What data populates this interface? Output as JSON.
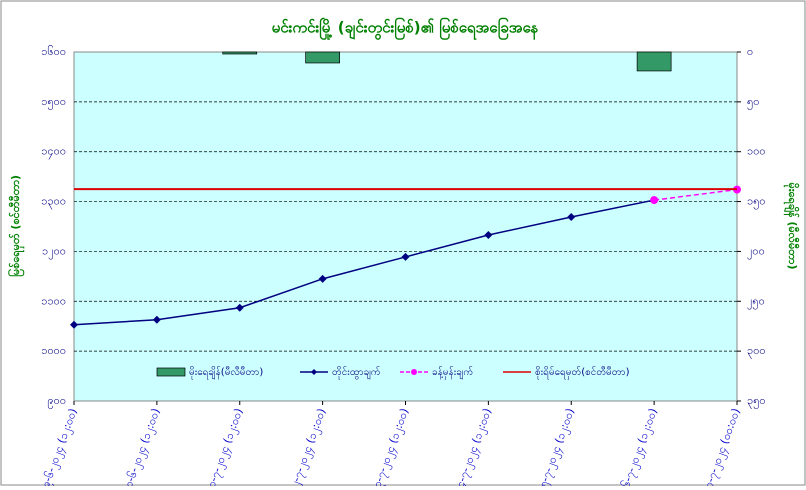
{
  "chart_data": {
    "type": "combo",
    "title": "မင်းကင်းမြို့ (ချင်းတွင်းမြစ်)၏ မြစ်ရေအခြေအနေ",
    "y_label": "မြစ်ရေမှတ် (စင်တီမီတာ)",
    "y2_label": "မိုးရေချိန် (မီလီမီတာ)",
    "categories": [
      "၂၉-၆-၂၀၂၄ (၁၂:၀၀)",
      "၃၀-၆-၂၀၂၄ (၁၂:၀၀)",
      "၁-၇-၂၀၂၄ (၁၂:၀၀)",
      "၂-၇-၂၀၂၄ (၁၂:၀၀)",
      "၃-၇-၂၀၂၄ (၁၂:၀၀)",
      "၄-၇-၂၀၂၄ (၁၂:၀၀)",
      "၅-၇-၂၀၂၄ (၁၂:၀၀)",
      "၆-၇-၂၀၂၄ (၁၂:၀၀)",
      "၇-၇-၂၀၂၄ (၀၀:၀၀)"
    ],
    "ylim": [
      900,
      1600
    ],
    "yticks": [
      {
        "value": 900,
        "label": "၉၀၀"
      },
      {
        "value": 1000,
        "label": "၁၀၀၀"
      },
      {
        "value": 1100,
        "label": "၁၁၀၀"
      },
      {
        "value": 1200,
        "label": "၁၂၀၀"
      },
      {
        "value": 1300,
        "label": "၁၃၀၀"
      },
      {
        "value": 1400,
        "label": "၁၄၀၀"
      },
      {
        "value": 1500,
        "label": "၁၅၀၀"
      },
      {
        "value": 1600,
        "label": "၁၆၀၀"
      }
    ],
    "y2lim": [
      350,
      0
    ],
    "y2ticks": [
      {
        "value": 0,
        "label": "၀"
      },
      {
        "value": 50,
        "label": "၅၀"
      },
      {
        "value": 100,
        "label": "၁၀၀"
      },
      {
        "value": 150,
        "label": "၁၅၀"
      },
      {
        "value": 200,
        "label": "၂၀၀"
      },
      {
        "value": 250,
        "label": "၂၅၀"
      },
      {
        "value": 300,
        "label": "၃၀၀"
      },
      {
        "value": 350,
        "label": "၃၅၀"
      }
    ],
    "grid": true,
    "series": [
      {
        "name": "မိုးရေချိန်(မီလီမီတာ)",
        "kind": "bar",
        "axis": "y2",
        "color": "#339966",
        "values": [
          null,
          null,
          2,
          11,
          null,
          null,
          null,
          19,
          null
        ]
      },
      {
        "name": "တိုင်းထွာချက်",
        "kind": "line",
        "color": "#000080",
        "values": [
          1053,
          1063,
          1087,
          1145,
          1189,
          1233,
          1269,
          1303,
          null
        ]
      },
      {
        "name": "ခန့်မှန်းချက်",
        "kind": "dashed",
        "color": "#ff00ff",
        "values": [
          null,
          null,
          null,
          null,
          null,
          null,
          null,
          1303,
          1324
        ]
      },
      {
        "name": "စိုးရိမ်ရေမှတ်(စင်တီမီတာ)",
        "kind": "level",
        "color": "#dd0000",
        "value": 1325
      }
    ]
  }
}
